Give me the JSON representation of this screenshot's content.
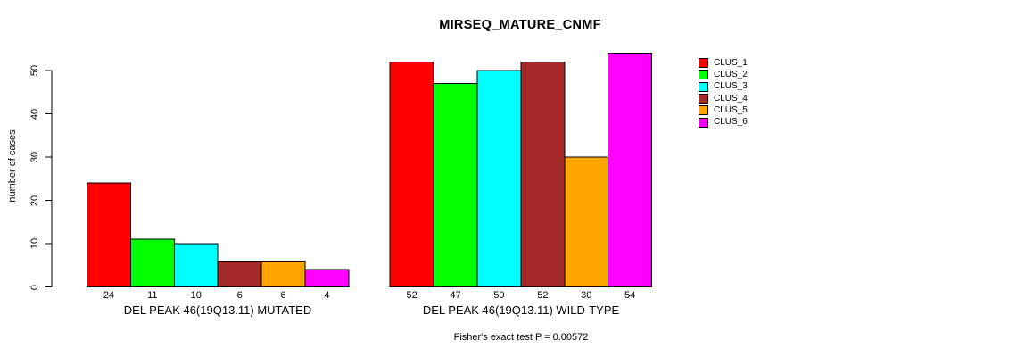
{
  "chart_data": {
    "type": "bar",
    "title": "MIRSEQ_MATURE_CNMF",
    "ylabel": "number of cases",
    "ylim": [
      0,
      50
    ],
    "yticks": [
      0,
      10,
      20,
      30,
      40,
      50
    ],
    "grid": false,
    "legend_position": "top-right",
    "categories": [
      "DEL PEAK 46(19Q13.11) MUTATED",
      "DEL PEAK 46(19Q13.11) WILD-TYPE"
    ],
    "series": [
      {
        "name": "CLUS_1",
        "color": "#FF0000",
        "values": [
          24,
          52
        ]
      },
      {
        "name": "CLUS_2",
        "color": "#00FF00",
        "values": [
          11,
          47
        ]
      },
      {
        "name": "CLUS_3",
        "color": "#00FFFF",
        "values": [
          10,
          50
        ]
      },
      {
        "name": "CLUS_4",
        "color": "#A52A2A",
        "values": [
          6,
          52
        ]
      },
      {
        "name": "CLUS_5",
        "color": "#FFA500",
        "values": [
          6,
          30
        ]
      },
      {
        "name": "CLUS_6",
        "color": "#FF00FF",
        "values": [
          4,
          54
        ]
      }
    ],
    "bar_border_color": "#000000",
    "axis_color": "#000000",
    "annotation": "Fisher's exact test P = 0.00572"
  }
}
